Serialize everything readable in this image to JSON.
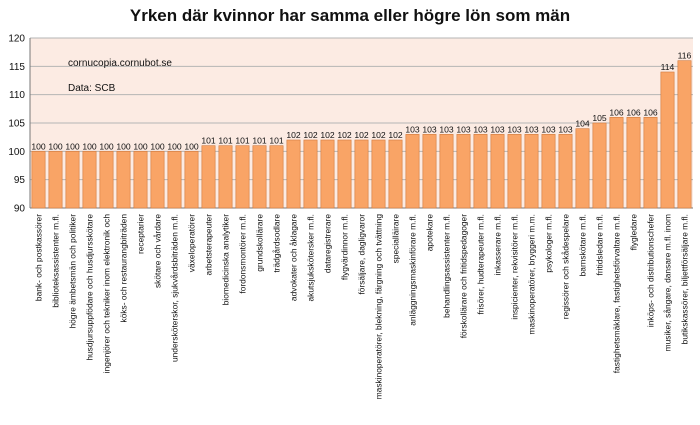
{
  "chart_data": {
    "type": "bar",
    "title": "Yrken där kvinnor har samma eller högre lön som män",
    "annotations": [
      "cornucopia.cornubot.se",
      "Data: SCB"
    ],
    "ylim": [
      90,
      120
    ],
    "yticks": [
      90,
      95,
      100,
      105,
      110,
      115,
      120
    ],
    "grid": true,
    "legend": "none",
    "colors": {
      "bar_fill": "#f9a466",
      "bar_stroke": "#d07a3c",
      "plot_background": "#fcebe3",
      "gridline": "#b5b5b5"
    },
    "categories": [
      "bank- och postkassörer",
      "biblioteksassistenter m.fl.",
      "högre ämbetsmän och politiker",
      "husdjursuppfödare och husdjursskötare",
      "ingenjörer och tekniker inom elektronik och",
      "köks- och restaurangbiträden",
      "receptarier",
      "skötare och vårdare",
      "undersköterskor, sjukvårdsbiträden m.fl.",
      "växeloperatörer",
      "arbetsterapeuter",
      "biomedicinska analytiker",
      "fordonsmontörer m.fl.",
      "grundskollärare",
      "trädgårdsodlare",
      "advokater och åklagare",
      "akutsjukskötersker m.fl.",
      "dataregistrerare",
      "flygvärdinnor m.fl.",
      "försäljare, dagligvaror",
      "maskinoperatörer, blekning, färgning och tvättning",
      "specialläirare",
      "anläggningsmaskinförare m.fl.",
      "apotekare",
      "behandlingsassistenter m.fl.",
      "förskollärare och fritidspedagoger",
      "frisörer, hudterapeuter m.fl.",
      "inkasserare m.fl.",
      "inspicienter, rekvisitörer m.fl.",
      "maskinoperatörer, bryggeri m.m.",
      "psykologer m.fl.",
      "regissörer och skådespelare",
      "barnskötare m.fl.",
      "fritidsledare m.fl.",
      "fastighetsmäklare, fastighetsförvaltare m.fl.",
      "flygledare",
      "inköps- och distributionschefer",
      "musiker, sångare, dansare m.fl. inom",
      "butikskassörer, biljettförsäljare m.fl."
    ],
    "values": [
      100,
      100,
      100,
      100,
      100,
      100,
      100,
      100,
      100,
      100,
      101,
      101,
      101,
      101,
      101,
      102,
      102,
      102,
      102,
      102,
      102,
      102,
      103,
      103,
      103,
      103,
      103,
      103,
      103,
      103,
      103,
      103,
      104,
      105,
      106,
      106,
      106,
      114,
      116
    ]
  }
}
